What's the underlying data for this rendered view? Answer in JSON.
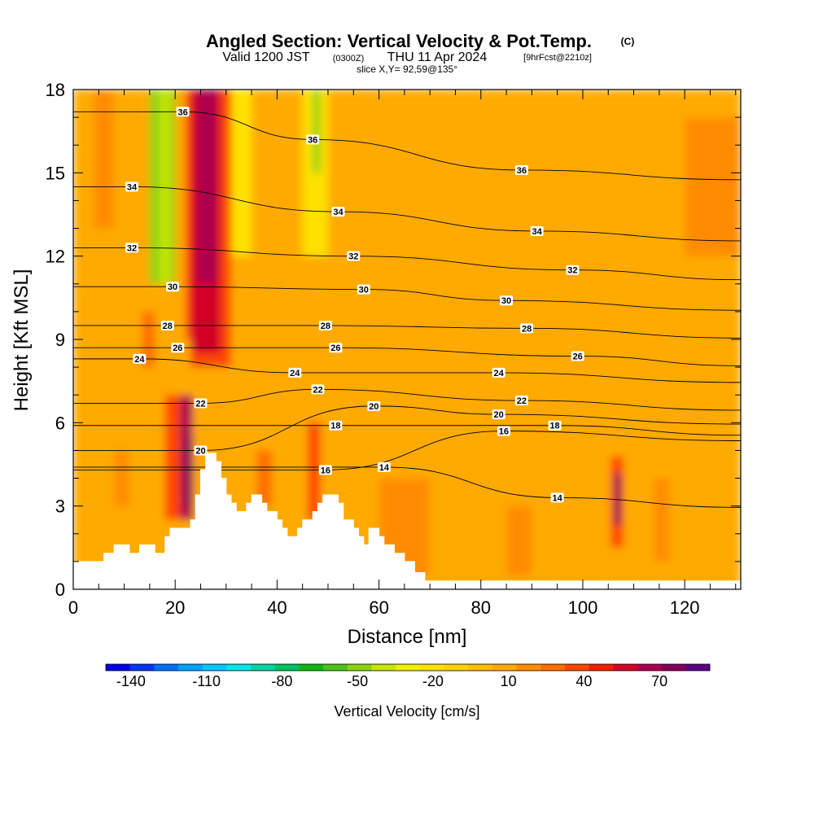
{
  "chart_data": {
    "type": "heatmap",
    "title": "Angled Section: Vertical Velocity & Pot.Temp.",
    "title_units": "(C)",
    "subtitle_valid": "Valid 1200 JST",
    "subtitle_utc": "(0300Z)",
    "subtitle_date": "THU 11 Apr 2024",
    "subtitle_fcst": "[9hrFcst@2210z]",
    "slice_label": "slice X,Y= 92,59@135°",
    "xlabel": "Distance [nm]",
    "ylabel": "Height [Kft MSL]",
    "xlim": [
      0,
      131
    ],
    "ylim": [
      0,
      18
    ],
    "x_ticks": [
      "0",
      "20",
      "40",
      "60",
      "80",
      "100",
      "120"
    ],
    "y_ticks": [
      "0",
      "3",
      "6",
      "9",
      "12",
      "15",
      "18"
    ],
    "colorbar": {
      "title": "Vertical Velocity [cm/s]",
      "labels": [
        "-140",
        "-110",
        "-80",
        "-50",
        "-20",
        "10",
        "40",
        "70"
      ],
      "min": -150,
      "max": 90,
      "step": 10,
      "colors": [
        "#0000e6",
        "#0036f5",
        "#0070f5",
        "#00a0ff",
        "#00c8ff",
        "#00e6e6",
        "#00d2a0",
        "#00c060",
        "#14b414",
        "#50c020",
        "#8cd214",
        "#c8e600",
        "#f0f000",
        "#ffe100",
        "#ffd200",
        "#ffbe00",
        "#ffaa00",
        "#ff8c00",
        "#ff6e00",
        "#ff4600",
        "#f01e00",
        "#d20028",
        "#aa0050",
        "#82005a",
        "#5a0082"
      ]
    },
    "vertical_velocity_cells": [
      {
        "x": [
          0,
          131
        ],
        "y": [
          0,
          18
        ],
        "value": 10
      },
      {
        "x": [
          12,
          17
        ],
        "y": [
          11,
          18
        ],
        "value": 10
      },
      {
        "x": [
          4,
          8
        ],
        "y": [
          13,
          18
        ],
        "value": 20
      },
      {
        "x": [
          15,
          20
        ],
        "y": [
          11,
          18
        ],
        "value": -50
      },
      {
        "x": [
          17,
          19
        ],
        "y": [
          11,
          18
        ],
        "value": -40
      },
      {
        "x": [
          30,
          35
        ],
        "y": [
          12,
          18
        ],
        "value": -20
      },
      {
        "x": [
          45,
          50
        ],
        "y": [
          12,
          18
        ],
        "value": -20
      },
      {
        "x": [
          47,
          48.5
        ],
        "y": [
          15,
          18
        ],
        "value": -50
      },
      {
        "x": [
          22,
          31
        ],
        "y": [
          8,
          18
        ],
        "value": 40
      },
      {
        "x": [
          23,
          29
        ],
        "y": [
          8.5,
          18
        ],
        "value": 60
      },
      {
        "x": [
          24.5,
          28
        ],
        "y": [
          11,
          18
        ],
        "value": 70
      },
      {
        "x": [
          17,
          23
        ],
        "y": [
          6,
          9
        ],
        "value": 10
      },
      {
        "x": [
          18,
          21
        ],
        "y": [
          2.5,
          7
        ],
        "value": 40
      },
      {
        "x": [
          21,
          23.5
        ],
        "y": [
          2.5,
          7
        ],
        "value": 70
      },
      {
        "x": [
          22,
          23.5
        ],
        "y": [
          3,
          5.5
        ],
        "value": 80
      },
      {
        "x": [
          13.5,
          16
        ],
        "y": [
          8,
          10
        ],
        "value": 30
      },
      {
        "x": [
          46,
          48.5
        ],
        "y": [
          2.5,
          6
        ],
        "value": 40
      },
      {
        "x": [
          36,
          39
        ],
        "y": [
          3,
          5
        ],
        "value": 30
      },
      {
        "x": [
          105.5,
          108
        ],
        "y": [
          1.5,
          4.8
        ],
        "value": 40
      },
      {
        "x": [
          106.2,
          107.5
        ],
        "y": [
          2.3,
          4.2
        ],
        "value": 80
      },
      {
        "x": [
          60,
          70
        ],
        "y": [
          0.5,
          4
        ],
        "value": 20
      },
      {
        "x": [
          85,
          90
        ],
        "y": [
          0.5,
          3
        ],
        "value": 20
      },
      {
        "x": [
          114,
          117
        ],
        "y": [
          1,
          4
        ],
        "value": 20
      },
      {
        "x": [
          120,
          131
        ],
        "y": [
          12,
          17
        ],
        "value": 20
      },
      {
        "x": [
          8,
          11
        ],
        "y": [
          3,
          5
        ],
        "value": 20
      }
    ],
    "terrain": [
      [
        0,
        1
      ],
      [
        6,
        1
      ],
      [
        6,
        1.3
      ],
      [
        8,
        1.3
      ],
      [
        8,
        1.6
      ],
      [
        11,
        1.6
      ],
      [
        11,
        1.3
      ],
      [
        13,
        1.3
      ],
      [
        13,
        1.6
      ],
      [
        16,
        1.6
      ],
      [
        16,
        1.3
      ],
      [
        18,
        1.3
      ],
      [
        18,
        1.9
      ],
      [
        19,
        1.9
      ],
      [
        19,
        2.2
      ],
      [
        21,
        2.2
      ],
      [
        21,
        2.2
      ],
      [
        23,
        2.2
      ],
      [
        23,
        2.5
      ],
      [
        24,
        2.5
      ],
      [
        24,
        3.4
      ],
      [
        25,
        3.4
      ],
      [
        25,
        4.3
      ],
      [
        26,
        4.3
      ],
      [
        26,
        4.9
      ],
      [
        28,
        4.9
      ],
      [
        28,
        4.6
      ],
      [
        29,
        4.6
      ],
      [
        29,
        4.0
      ],
      [
        30,
        4.0
      ],
      [
        30,
        3.4
      ],
      [
        31,
        3.4
      ],
      [
        31,
        3.1
      ],
      [
        32,
        3.1
      ],
      [
        32,
        2.8
      ],
      [
        34,
        2.8
      ],
      [
        34,
        3.1
      ],
      [
        35,
        3.1
      ],
      [
        35,
        3.4
      ],
      [
        37,
        3.4
      ],
      [
        37,
        3.1
      ],
      [
        38,
        3.1
      ],
      [
        38,
        2.8
      ],
      [
        40,
        2.8
      ],
      [
        40,
        2.5
      ],
      [
        41,
        2.5
      ],
      [
        41,
        2.2
      ],
      [
        42,
        2.2
      ],
      [
        42,
        1.9
      ],
      [
        44,
        1.9
      ],
      [
        44,
        2.2
      ],
      [
        45,
        2.2
      ],
      [
        45,
        2.5
      ],
      [
        47,
        2.5
      ],
      [
        47,
        2.8
      ],
      [
        48,
        2.8
      ],
      [
        48,
        3.1
      ],
      [
        49,
        3.1
      ],
      [
        49,
        3.4
      ],
      [
        52,
        3.4
      ],
      [
        52,
        3.1
      ],
      [
        53,
        3.1
      ],
      [
        53,
        2.5
      ],
      [
        55,
        2.5
      ],
      [
        55,
        2.2
      ],
      [
        56,
        2.2
      ],
      [
        56,
        1.9
      ],
      [
        57,
        1.9
      ],
      [
        57,
        1.6
      ],
      [
        58,
        1.6
      ],
      [
        58,
        2.2
      ],
      [
        60,
        2.2
      ],
      [
        60,
        1.9
      ],
      [
        61,
        1.9
      ],
      [
        61,
        1.6
      ],
      [
        63,
        1.6
      ],
      [
        63,
        1.3
      ],
      [
        65,
        1.3
      ],
      [
        65,
        1.0
      ],
      [
        67,
        1.0
      ],
      [
        67,
        0.6
      ],
      [
        69,
        0.6
      ],
      [
        69,
        0.3
      ],
      [
        131,
        0.3
      ]
    ],
    "theta_labels": [
      {
        "value": "36",
        "x": 21.5,
        "y": 17.2
      },
      {
        "value": "36",
        "x": 47,
        "y": 16.2
      },
      {
        "value": "36",
        "x": 88,
        "y": 15.1
      },
      {
        "value": "34",
        "x": 11.5,
        "y": 14.5
      },
      {
        "value": "34",
        "x": 52,
        "y": 13.6
      },
      {
        "value": "34",
        "x": 91,
        "y": 12.9
      },
      {
        "value": "32",
        "x": 11.5,
        "y": 12.3
      },
      {
        "value": "32",
        "x": 55,
        "y": 12.0
      },
      {
        "value": "32",
        "x": 98,
        "y": 11.5
      },
      {
        "value": "30",
        "x": 19.5,
        "y": 10.9
      },
      {
        "value": "30",
        "x": 57,
        "y": 10.8
      },
      {
        "value": "30",
        "x": 85,
        "y": 10.4
      },
      {
        "value": "28",
        "x": 18.5,
        "y": 9.5
      },
      {
        "value": "28",
        "x": 49.5,
        "y": 9.5
      },
      {
        "value": "28",
        "x": 89,
        "y": 9.4
      },
      {
        "value": "26",
        "x": 20.5,
        "y": 8.7
      },
      {
        "value": "26",
        "x": 51.5,
        "y": 8.7
      },
      {
        "value": "26",
        "x": 99,
        "y": 8.4
      },
      {
        "value": "24",
        "x": 13,
        "y": 8.3
      },
      {
        "value": "24",
        "x": 43.5,
        "y": 7.8
      },
      {
        "value": "24",
        "x": 83.5,
        "y": 7.8
      },
      {
        "value": "22",
        "x": 25,
        "y": 6.7
      },
      {
        "value": "22",
        "x": 48,
        "y": 7.2
      },
      {
        "value": "22",
        "x": 88,
        "y": 6.8
      },
      {
        "value": "20",
        "x": 25,
        "y": 5.0
      },
      {
        "value": "20",
        "x": 59,
        "y": 6.6
      },
      {
        "value": "20",
        "x": 83.5,
        "y": 6.3
      },
      {
        "value": "18",
        "x": 51.5,
        "y": 5.9
      },
      {
        "value": "18",
        "x": 94.5,
        "y": 5.9
      },
      {
        "value": "16",
        "x": 49.5,
        "y": 4.3
      },
      {
        "value": "16",
        "x": 84.5,
        "y": 5.7
      },
      {
        "value": "14",
        "x": 61,
        "y": 4.4
      },
      {
        "value": "14",
        "x": 95,
        "y": 3.3
      }
    ]
  }
}
